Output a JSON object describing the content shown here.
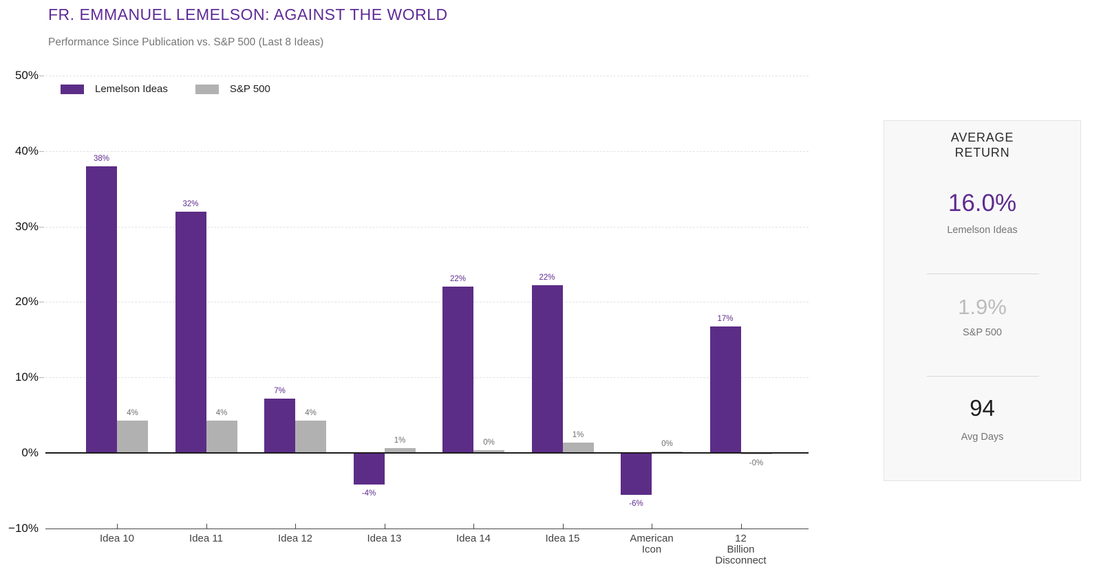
{
  "chart_data": {
    "type": "bar",
    "title": "FR. EMMANUEL LEMELSON: AGAINST THE WORLD",
    "subtitle": "Performance Since Publication vs. S&P 500 (Last 8 Ideas)",
    "categories": [
      "Idea 10",
      "Idea 11",
      "Idea 12",
      "Idea 13",
      "Idea 14",
      "Idea 15",
      "American Icon",
      "12 Billion Disconnect"
    ],
    "category_lines": [
      [
        "Idea 10"
      ],
      [
        "Idea 11"
      ],
      [
        "Idea 12"
      ],
      [
        "Idea 13"
      ],
      [
        "Idea 14"
      ],
      [
        "Idea 15"
      ],
      [
        "American",
        "Icon"
      ],
      [
        "12",
        "Billion",
        "Disconnect"
      ]
    ],
    "series": [
      {
        "name": "Lemelson Ideas",
        "color": "#5C2D87",
        "label_color": "#5E2B8F",
        "values": [
          38,
          32,
          7.2,
          -4.2,
          22,
          22.2,
          -5.6,
          16.8
        ],
        "labels": [
          "38%",
          "32%",
          "7%",
          "-4%",
          "22%",
          "22%",
          "-6%",
          "17%"
        ]
      },
      {
        "name": "S&P 500",
        "color": "#B1B1B1",
        "label_color": "#6E6E6E",
        "values": [
          4.3,
          4.3,
          4.3,
          0.6,
          0.4,
          1.4,
          0.2,
          -0.2
        ],
        "labels": [
          "4%",
          "4%",
          "4%",
          "1%",
          "0%",
          "1%",
          "0%",
          "-0%"
        ]
      }
    ],
    "y_axis": {
      "range": [
        -10,
        50
      ],
      "grid": true,
      "ticks": [
        {
          "value": 50,
          "label": "50%"
        },
        {
          "value": 40,
          "label": "40%"
        },
        {
          "value": 30,
          "label": "30%"
        },
        {
          "value": 20,
          "label": "20%"
        },
        {
          "value": 10,
          "label": "10%"
        },
        {
          "value": 0,
          "label": "0%"
        },
        {
          "value": -10,
          "label": "−10%"
        }
      ]
    },
    "legend_position": "top-left"
  },
  "summary_panel": {
    "title_lines": [
      "AVERAGE",
      "RETURN"
    ],
    "stats": [
      {
        "value": "16.0%",
        "label": "Lemelson Ideas",
        "value_color": "#5E2B8F"
      },
      {
        "value": "1.9%",
        "label": "S&P 500",
        "value_color": "#BCBCBC"
      },
      {
        "value": "94",
        "label": "Avg Days",
        "value_color": "#1E1E1E"
      }
    ]
  }
}
